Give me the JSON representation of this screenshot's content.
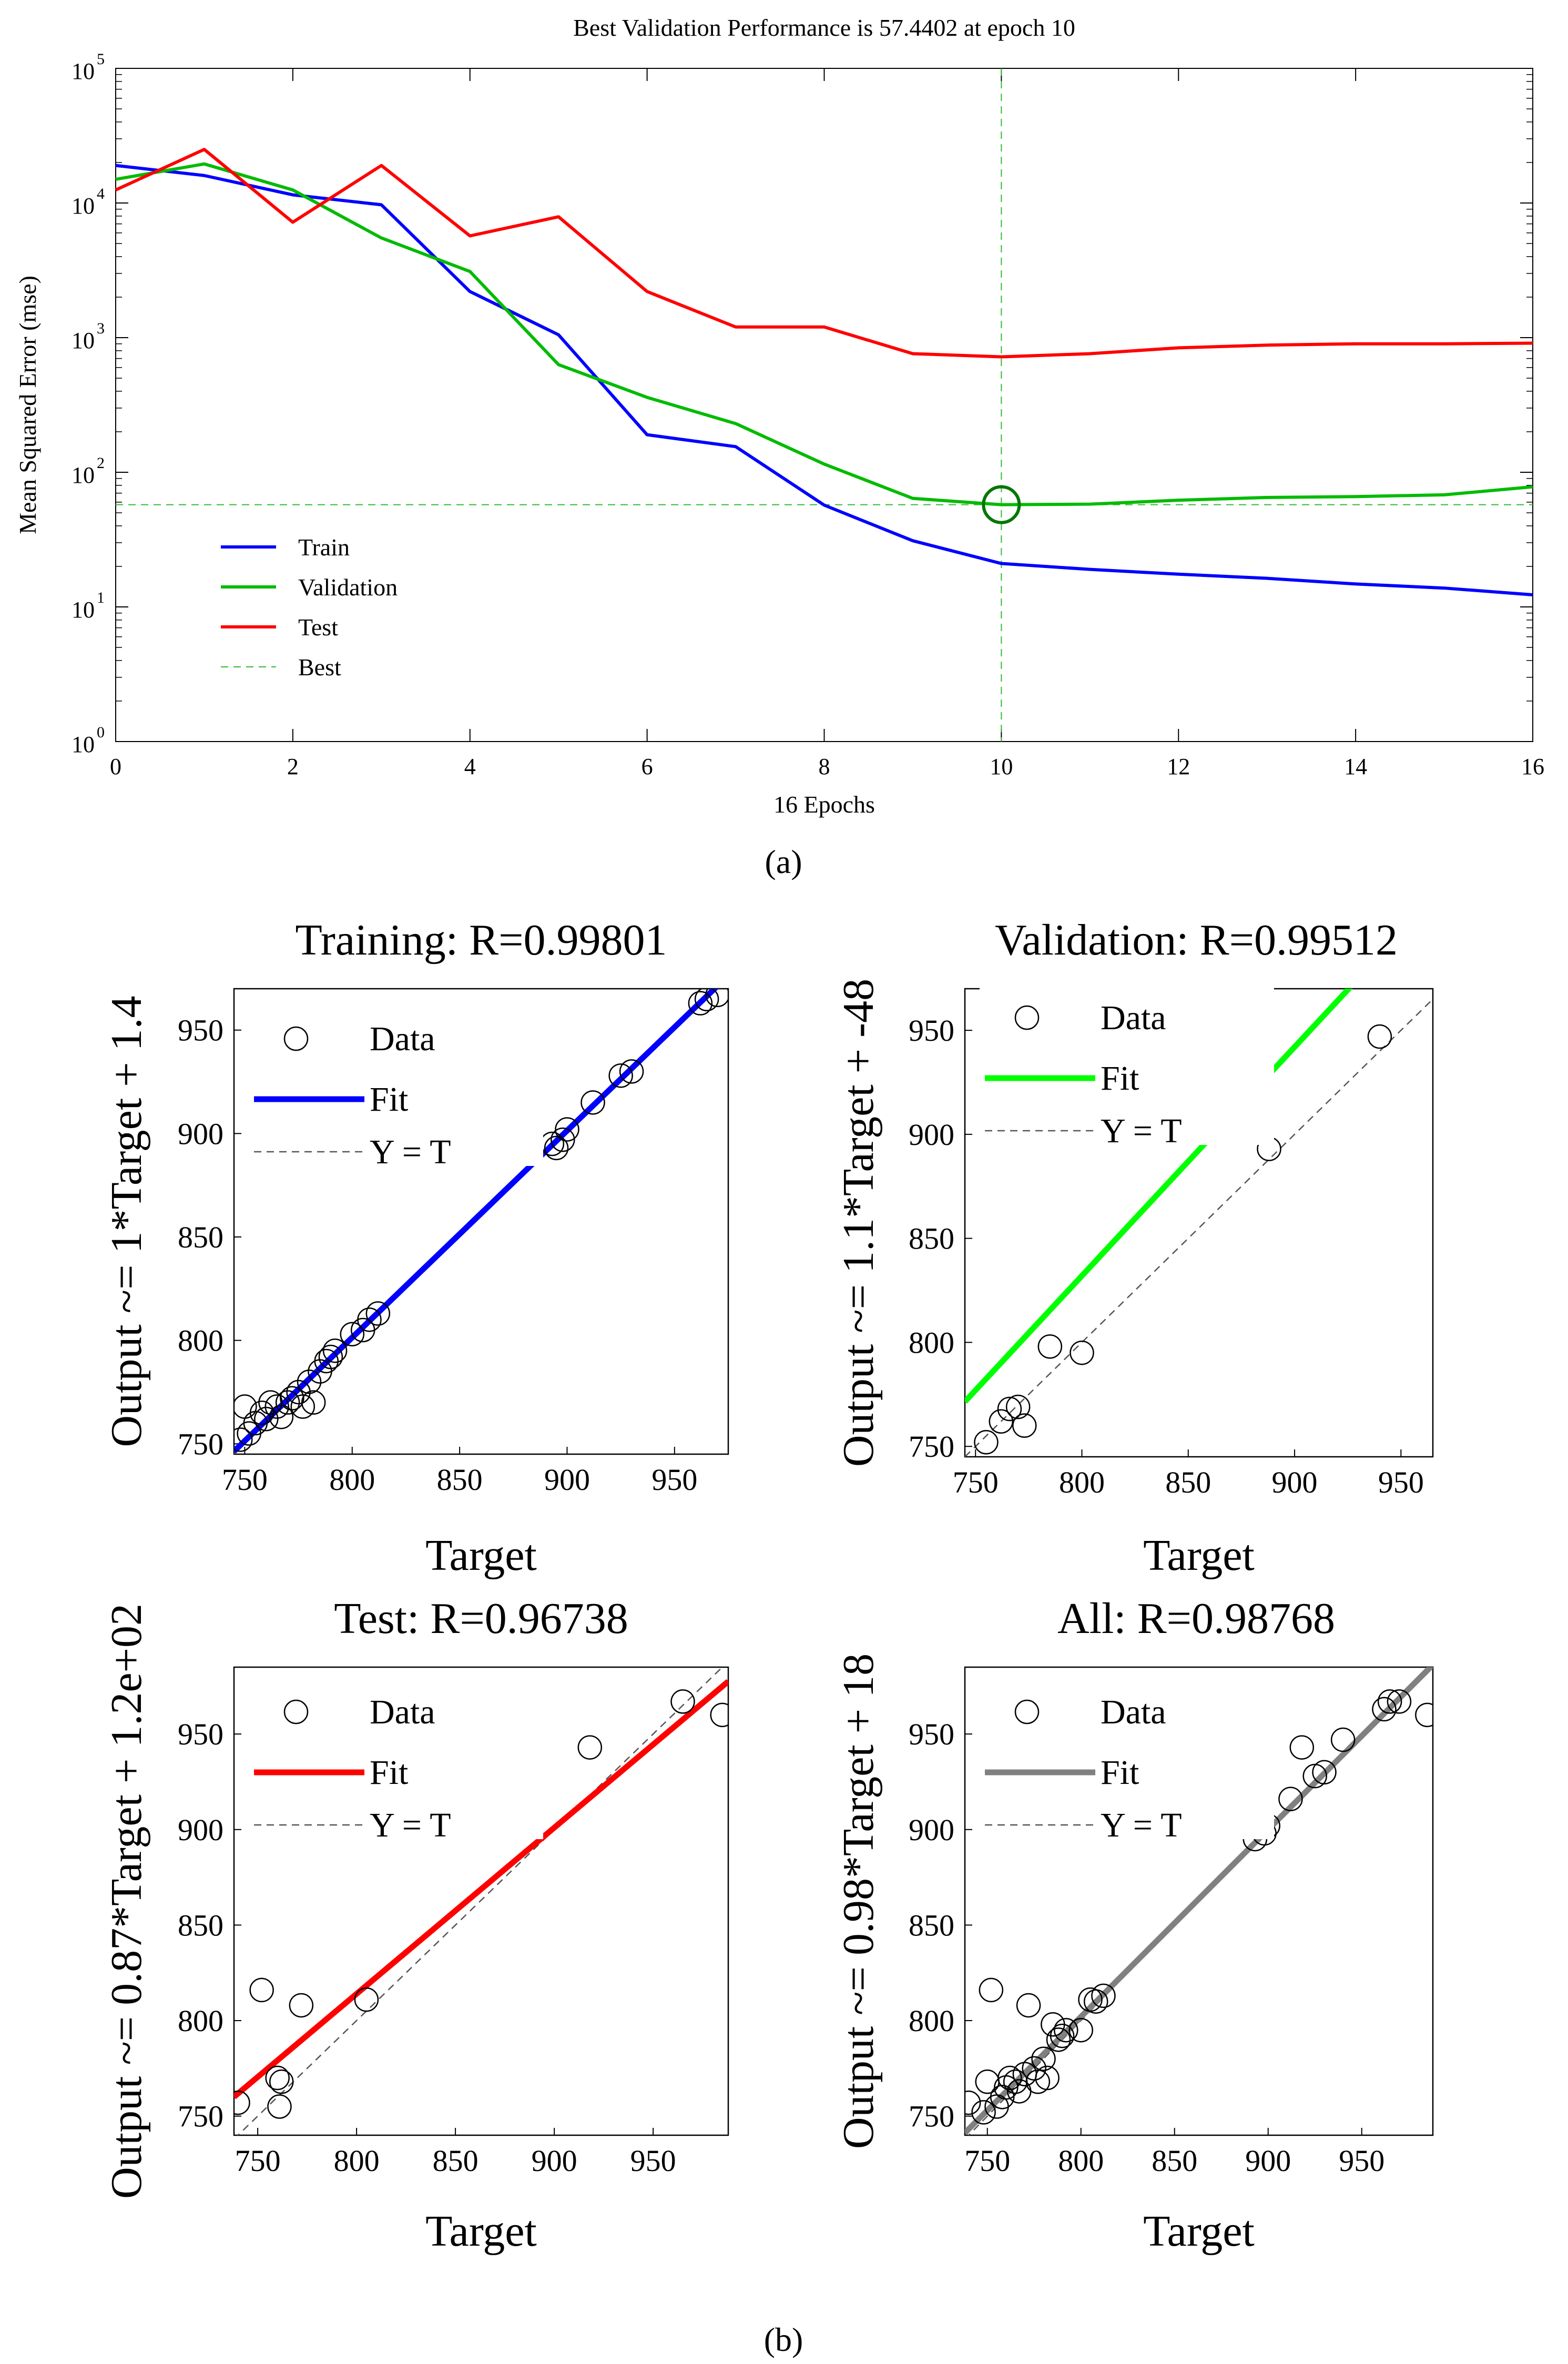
{
  "figure_labels": {
    "a": "(a)",
    "b": "(b)"
  },
  "chart_data": [
    {
      "type": "line",
      "yscale": "log",
      "title": "Best Validation Performance is 57.4402 at epoch 10",
      "xlabel": "16 Epochs",
      "ylabel": "Mean Squared Error  (mse)",
      "xlim": [
        0,
        16
      ],
      "ylim": [
        1,
        100000
      ],
      "xticks": [
        0,
        2,
        4,
        6,
        8,
        10,
        12,
        14,
        16
      ],
      "yticks": [
        {
          "value": 1,
          "base": "10",
          "exp": "0"
        },
        {
          "value": 10,
          "base": "10",
          "exp": "1"
        },
        {
          "value": 100,
          "base": "10",
          "exp": "2"
        },
        {
          "value": 1000,
          "base": "10",
          "exp": "3"
        },
        {
          "value": 10000,
          "base": "10",
          "exp": "4"
        },
        {
          "value": 100000,
          "base": "10",
          "exp": "5"
        }
      ],
      "x": [
        0,
        1,
        2,
        3,
        4,
        5,
        6,
        7,
        8,
        9,
        10,
        11,
        12,
        13,
        14,
        15,
        16
      ],
      "series": [
        {
          "name": "Train",
          "color": "#0000ff",
          "values": [
            19000,
            16000,
            11500,
            9700,
            2200,
            1050,
            190,
            155,
            57,
            31,
            21,
            19,
            17.5,
            16.3,
            14.8,
            13.8,
            12.3
          ]
        },
        {
          "name": "Validation",
          "color": "#00bb00",
          "values": [
            15000,
            19500,
            12500,
            5500,
            3100,
            630,
            360,
            230,
            115,
            64,
            57.44,
            58,
            62,
            65,
            66,
            68,
            78
          ]
        },
        {
          "name": "Test",
          "color": "#ff0000",
          "values": [
            12500,
            25000,
            7200,
            19000,
            5700,
            7900,
            2200,
            1200,
            1200,
            760,
            720,
            760,
            840,
            880,
            900,
            900,
            910
          ]
        }
      ],
      "best": {
        "name": "Best",
        "color": "#00aa00",
        "epoch": 10,
        "value": 57.4402
      }
    },
    {
      "type": "scatter",
      "title": "Training: R=0.99801",
      "xlabel": "Target",
      "ylabel": "Output ~= 1*Target + 1.4",
      "xlim": [
        745,
        975
      ],
      "ylim": [
        745,
        970
      ],
      "xticks": [
        750,
        800,
        850,
        900,
        950
      ],
      "yticks": [
        750,
        800,
        850,
        900,
        950
      ],
      "fit": {
        "slope": 1,
        "intercept": 1.4,
        "color": "#0000ff"
      },
      "legend": [
        "Data",
        "Fit",
        "Y = T"
      ],
      "points": [
        [
          748,
          752
        ],
        [
          750,
          768
        ],
        [
          752,
          755
        ],
        [
          755,
          760
        ],
        [
          758,
          765
        ],
        [
          760,
          762
        ],
        [
          762,
          770
        ],
        [
          765,
          768
        ],
        [
          767,
          763
        ],
        [
          770,
          770
        ],
        [
          772,
          772
        ],
        [
          775,
          775
        ],
        [
          777,
          768
        ],
        [
          780,
          780
        ],
        [
          782,
          770
        ],
        [
          785,
          785
        ],
        [
          788,
          790
        ],
        [
          790,
          792
        ],
        [
          792,
          795
        ],
        [
          800,
          803
        ],
        [
          805,
          805
        ],
        [
          808,
          810
        ],
        [
          812,
          813
        ],
        [
          893,
          895
        ],
        [
          895,
          893
        ],
        [
          898,
          897
        ],
        [
          900,
          902
        ],
        [
          912,
          915
        ],
        [
          925,
          928
        ],
        [
          930,
          930
        ],
        [
          962,
          963
        ],
        [
          965,
          965
        ],
        [
          970,
          967
        ]
      ]
    },
    {
      "type": "scatter",
      "title": "Validation: R=0.99512",
      "xlabel": "Target",
      "ylabel": "Output ~= 1.1*Target + -48",
      "xlim": [
        745,
        965
      ],
      "ylim": [
        745,
        970
      ],
      "xticks": [
        750,
        800,
        850,
        900,
        950
      ],
      "yticks": [
        750,
        800,
        850,
        900,
        950
      ],
      "fit": {
        "slope": 1.1,
        "intercept": -48,
        "color": "#00ff00"
      },
      "legend": [
        "Data",
        "Fit",
        "Y = T"
      ],
      "points": [
        [
          755,
          752
        ],
        [
          762,
          762
        ],
        [
          766,
          768
        ],
        [
          770,
          769
        ],
        [
          773,
          760
        ],
        [
          785,
          798
        ],
        [
          800,
          795
        ],
        [
          888,
          893
        ],
        [
          940,
          947
        ]
      ]
    },
    {
      "type": "scatter",
      "title": "Test: R=0.96738",
      "xlabel": "Target",
      "ylabel": "Output ~= 0.87*Target + 1.2e+02",
      "xlim": [
        738,
        988
      ],
      "ylim": [
        740,
        985
      ],
      "xticks": [
        750,
        800,
        850,
        900,
        950
      ],
      "yticks": [
        750,
        800,
        850,
        900,
        950
      ],
      "fit": {
        "slope": 0.87,
        "intercept": 118,
        "color": "#ff0000"
      },
      "legend": [
        "Data",
        "Fit",
        "Y = T"
      ],
      "points": [
        [
          740,
          757
        ],
        [
          752,
          816
        ],
        [
          760,
          770
        ],
        [
          762,
          768
        ],
        [
          761,
          755
        ],
        [
          772,
          808
        ],
        [
          805,
          811
        ],
        [
          918,
          943
        ],
        [
          965,
          967
        ],
        [
          985,
          960
        ]
      ]
    },
    {
      "type": "scatter",
      "title": "All: R=0.98768",
      "xlabel": "Target",
      "ylabel": "Output ~= 0.98*Target + 18",
      "xlim": [
        738,
        988
      ],
      "ylim": [
        740,
        985
      ],
      "xticks": [
        750,
        800,
        850,
        900,
        950
      ],
      "yticks": [
        750,
        800,
        850,
        900,
        950
      ],
      "fit": {
        "slope": 0.98,
        "intercept": 18,
        "color": "#808080"
      },
      "legend": [
        "Data",
        "Fit",
        "Y = T"
      ],
      "points": [
        [
          740,
          757
        ],
        [
          748,
          752
        ],
        [
          750,
          768
        ],
        [
          752,
          816
        ],
        [
          755,
          755
        ],
        [
          758,
          760
        ],
        [
          760,
          765
        ],
        [
          762,
          770
        ],
        [
          765,
          768
        ],
        [
          767,
          763
        ],
        [
          770,
          772
        ],
        [
          772,
          808
        ],
        [
          775,
          775
        ],
        [
          777,
          768
        ],
        [
          780,
          780
        ],
        [
          782,
          770
        ],
        [
          785,
          798
        ],
        [
          788,
          790
        ],
        [
          790,
          792
        ],
        [
          792,
          795
        ],
        [
          800,
          795
        ],
        [
          805,
          811
        ],
        [
          808,
          810
        ],
        [
          812,
          813
        ],
        [
          893,
          895
        ],
        [
          898,
          898
        ],
        [
          900,
          902
        ],
        [
          912,
          916
        ],
        [
          918,
          943
        ],
        [
          925,
          928
        ],
        [
          930,
          930
        ],
        [
          940,
          947
        ],
        [
          962,
          963
        ],
        [
          965,
          967
        ],
        [
          970,
          967
        ],
        [
          985,
          960
        ]
      ]
    }
  ]
}
